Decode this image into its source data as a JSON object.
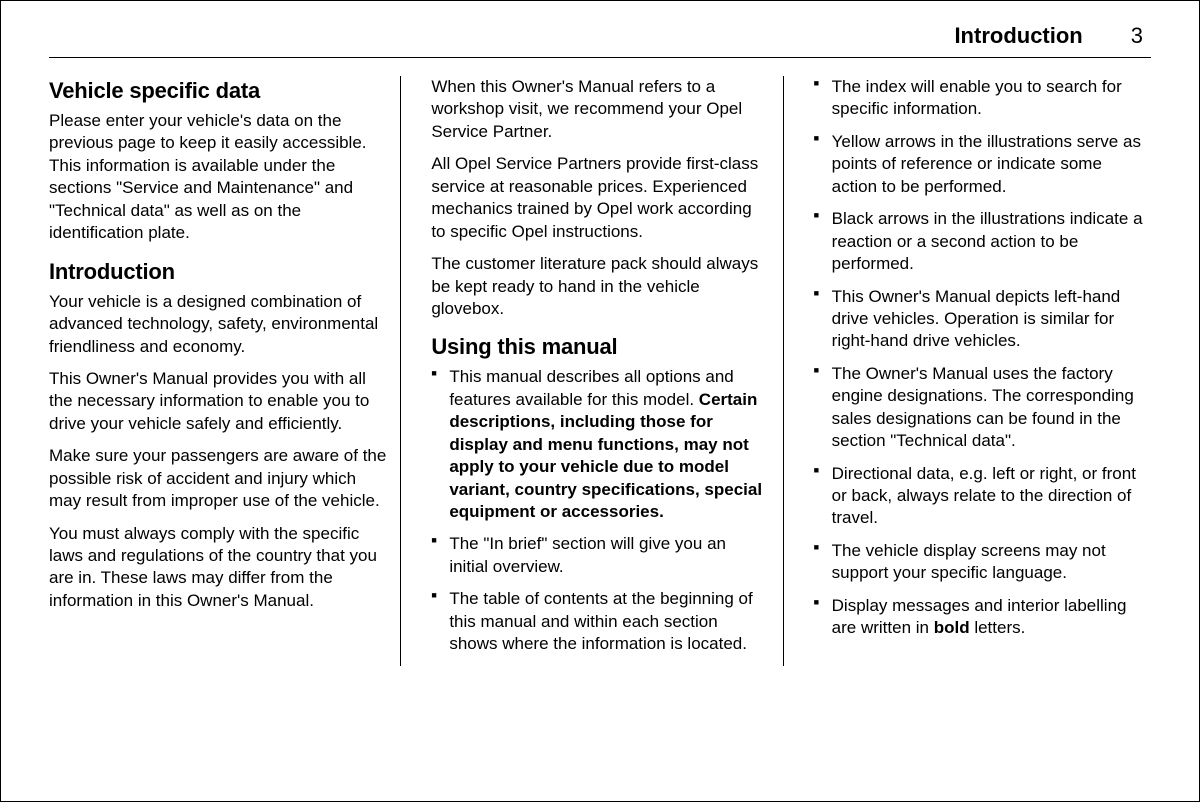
{
  "header": {
    "title": "Introduction",
    "page_number": "3"
  },
  "col1": {
    "h1": "Vehicle specific data",
    "p1": "Please enter your vehicle's data on the previous page to keep it easily accessible. This information is available under the sections \"Service and Maintenance\" and \"Technical data\" as well as on the identification plate.",
    "h2": "Introduction",
    "p2": "Your vehicle is a designed combination of advanced technology, safety, environmental friendliness and economy.",
    "p3": "This Owner's Manual provides you with all the necessary information to enable you to drive your vehicle safely and efficiently.",
    "p4": "Make sure your passengers are aware of the possible risk of accident and injury which may result from improper use of the vehicle.",
    "p5": "You must always comply with the specific laws and regulations of the country that you are in. These laws may differ from the information in this Owner's Manual."
  },
  "col2": {
    "p1": "When this Owner's Manual refers to a workshop visit, we recommend your Opel Service Partner.",
    "p2": "All Opel Service Partners provide first-class service at reasonable prices. Experienced mechanics trained by Opel work according to specific Opel instructions.",
    "p3": "The customer literature pack should always be kept ready to hand in the vehicle glovebox.",
    "h1": "Using this manual",
    "li1_a": "This manual describes all options and features available for this model. ",
    "li1_b": "Certain descriptions, including those for display and menu functions, may not apply to your vehicle due to model variant, country specifications, special equipment or accessories.",
    "li2": "The \"In brief\" section will give you an initial overview.",
    "li3": "The table of contents at the beginning of this manual and within each section shows where the information is located."
  },
  "col3": {
    "li1": "The index will enable you to search for specific information.",
    "li2": "Yellow arrows in the illustrations serve as points of reference or indicate some action to be performed.",
    "li3": "Black arrows in the illustrations indicate a reaction or a second action to be performed.",
    "li4": "This Owner's Manual depicts left-hand drive vehicles. Operation is similar for right-hand drive vehicles.",
    "li5": "The Owner's Manual uses the factory engine designations. The corresponding sales designations can be found in the section \"Technical data\".",
    "li6": "Directional data, e.g. left or right, or front or back, always relate to the direction of travel.",
    "li7": "The vehicle display screens may not support your specific language.",
    "li8_a": "Display messages and interior labelling are written in ",
    "li8_b": "bold",
    "li8_c": " letters."
  }
}
